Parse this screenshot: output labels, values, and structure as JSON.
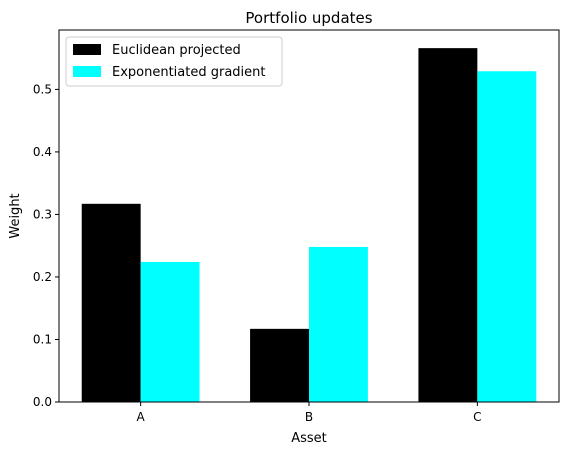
{
  "chart_data": {
    "type": "bar",
    "title": "Portfolio updates",
    "xlabel": "Asset",
    "ylabel": "Weight",
    "categories": [
      "A",
      "B",
      "C"
    ],
    "series": [
      {
        "name": "Euclidean projected",
        "values": [
          0.317,
          0.117,
          0.566
        ],
        "color": "#000000"
      },
      {
        "name": "Exponentiated gradient",
        "values": [
          0.224,
          0.248,
          0.529
        ],
        "color": "#00ffff"
      }
    ],
    "ylim": [
      0,
      0.595
    ],
    "yticks": [
      0.0,
      0.1,
      0.2,
      0.3,
      0.4,
      0.5
    ],
    "ytick_labels": [
      "0.0",
      "0.1",
      "0.2",
      "0.3",
      "0.4",
      "0.5"
    ],
    "grid": false,
    "legend_position": "top-left"
  }
}
